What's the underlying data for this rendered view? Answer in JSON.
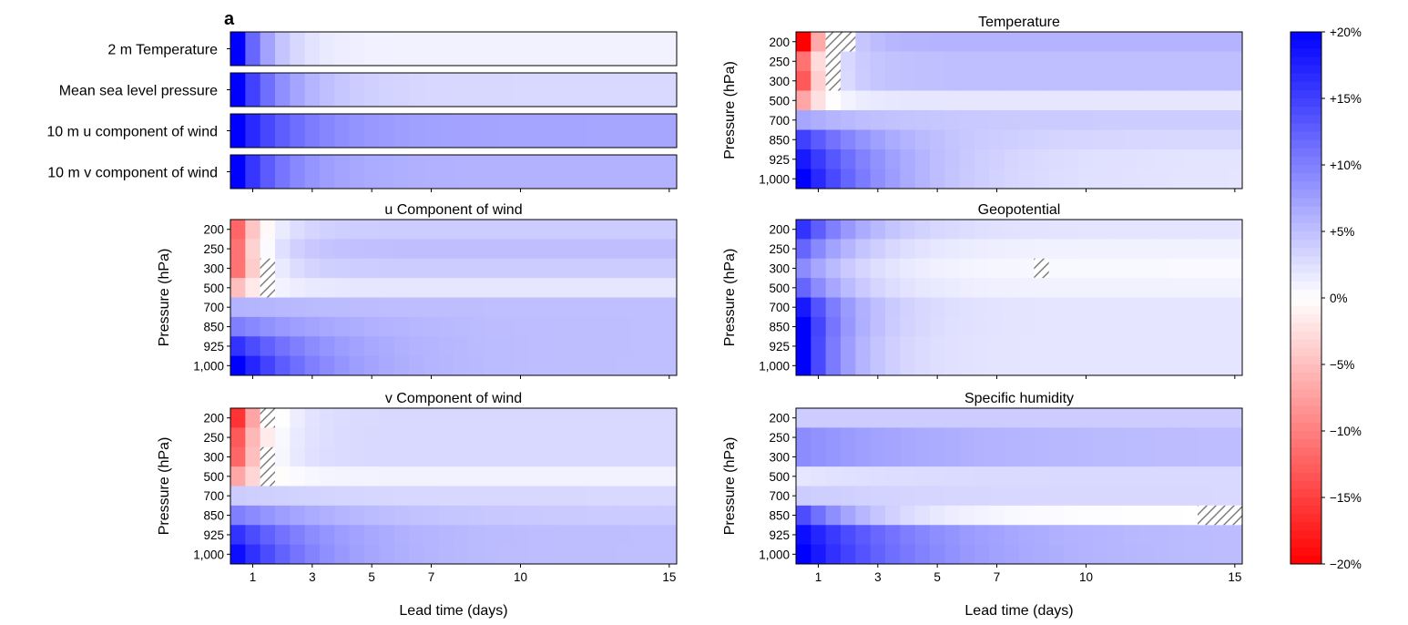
{
  "figure": {
    "panel_letter": "a",
    "colors": {
      "negative": "#ff0000",
      "zero": "#ffffff",
      "positive": "#0000ff",
      "hatch": "#777777"
    }
  },
  "chart_data": [
    {
      "type": "heatmap",
      "id": "surface",
      "title": "",
      "rows": [
        "2 m Temperature",
        "Mean sea level pressure",
        "10 m u component of wind",
        "10 m v component of wind"
      ],
      "x_ticks": [
        "1",
        "3",
        "5",
        "7",
        "10",
        "15"
      ],
      "x_lim_days": [
        0.25,
        15.25
      ],
      "start": [
        20,
        20,
        20,
        20
      ],
      "end": [
        1,
        3,
        7,
        6
      ],
      "decay": [
        0.9,
        1.4,
        1.8,
        1.4
      ],
      "hatch": []
    },
    {
      "type": "heatmap",
      "id": "temperature",
      "title": "Temperature",
      "ylabel": "Pressure (hPa)",
      "y_ticks": [
        "200",
        "250",
        "300",
        "500",
        "700",
        "850",
        "925",
        "1,000"
      ],
      "x_lim_days": [
        0.25,
        15.25
      ],
      "x_ticks": [
        "1",
        "3",
        "5",
        "7",
        "10",
        "15"
      ],
      "start": [
        -20,
        -11,
        -13,
        -7,
        7,
        15,
        18,
        20
      ],
      "end": [
        6,
        5,
        5,
        2,
        4,
        3,
        2,
        2
      ],
      "decay": [
        0.7,
        0.7,
        0.7,
        0.7,
        2.2,
        2.5,
        2.8,
        2.6
      ],
      "hatch": [
        {
          "level": 0,
          "from_day": 1.25,
          "to_day": 2.25
        },
        {
          "level": 1,
          "from_day": 1.25,
          "to_day": 1.75
        },
        {
          "level": 2,
          "from_day": 1.25,
          "to_day": 1.75
        }
      ]
    },
    {
      "type": "heatmap",
      "id": "u_wind",
      "title": "u Component of wind",
      "ylabel": "Pressure (hPa)",
      "y_ticks": [
        "200",
        "250",
        "300",
        "500",
        "700",
        "850",
        "925",
        "1,000"
      ],
      "x_lim_days": [
        0.25,
        15.25
      ],
      "x_ticks": [
        "1",
        "3",
        "5",
        "7",
        "10",
        "15"
      ],
      "start": [
        -12,
        -11,
        -11,
        -5,
        6,
        10,
        16,
        20
      ],
      "end": [
        4,
        5,
        4,
        2,
        5,
        5,
        5,
        5
      ],
      "decay": [
        0.8,
        0.8,
        0.8,
        0.8,
        3.0,
        3.0,
        2.5,
        2.3
      ],
      "hatch": [
        {
          "level": 2,
          "from_day": 1.25,
          "to_day": 1.75
        },
        {
          "level": 3,
          "from_day": 1.25,
          "to_day": 1.75
        }
      ]
    },
    {
      "type": "heatmap",
      "id": "geopotential",
      "title": "Geopotential",
      "ylabel": "Pressure (hPa)",
      "y_ticks": [
        "200",
        "250",
        "300",
        "500",
        "700",
        "850",
        "925",
        "1,000"
      ],
      "x_lim_days": [
        0.25,
        15.25
      ],
      "x_ticks": [
        "1",
        "3",
        "5",
        "7",
        "10",
        "15"
      ],
      "start": [
        16,
        12,
        9,
        12,
        18,
        20,
        20,
        20
      ],
      "end": [
        2,
        1,
        0.5,
        1,
        2,
        2,
        2,
        2
      ],
      "decay": [
        1.8,
        1.8,
        1.8,
        1.6,
        1.5,
        1.4,
        1.3,
        1.3
      ],
      "hatch": [
        {
          "level": 2,
          "from_day": 8.25,
          "to_day": 8.75
        }
      ]
    },
    {
      "type": "heatmap",
      "id": "v_wind",
      "title": "v Component of wind",
      "ylabel": "Pressure (hPa)",
      "y_ticks": [
        "200",
        "250",
        "300",
        "500",
        "700",
        "850",
        "925",
        "1,000"
      ],
      "x_lim_days": [
        0.25,
        15.25
      ],
      "x_ticks": [
        "1",
        "3",
        "5",
        "7",
        "10",
        "15"
      ],
      "start": [
        -16,
        -13,
        -12,
        -7,
        4,
        10,
        16,
        19
      ],
      "end": [
        3,
        3,
        3,
        1,
        3,
        4,
        5,
        5
      ],
      "decay": [
        0.8,
        0.8,
        0.8,
        0.8,
        3.0,
        3.0,
        2.5,
        2.3
      ],
      "hatch": [
        {
          "level": 0,
          "from_day": 1.25,
          "to_day": 1.75
        },
        {
          "level": 2,
          "from_day": 1.25,
          "to_day": 1.75
        },
        {
          "level": 3,
          "from_day": 1.25,
          "to_day": 1.75
        }
      ]
    },
    {
      "type": "heatmap",
      "id": "specific_humidity",
      "title": "Specific humidity",
      "ylabel": "Pressure (hPa)",
      "y_ticks": [
        "200",
        "250",
        "300",
        "500",
        "700",
        "850",
        "925",
        "1,000"
      ],
      "x_lim_days": [
        0.25,
        15.25
      ],
      "x_ticks": [
        "1",
        "3",
        "5",
        "7",
        "10",
        "15"
      ],
      "start": [
        4,
        9,
        9,
        2,
        4,
        14,
        19,
        20
      ],
      "end": [
        4,
        5,
        5,
        3,
        3,
        0,
        5,
        5
      ],
      "decay": [
        3.0,
        4.5,
        4.5,
        3.0,
        3.5,
        2.2,
        3.5,
        3.5
      ],
      "hatch": [
        {
          "level": 5,
          "from_day": 13.75,
          "to_day": 15.25
        }
      ]
    },
    {
      "type": "colorbar",
      "id": "colorbar",
      "range_percent": [
        -20,
        20
      ],
      "tick_labels": [
        "+20%",
        "+15%",
        "+10%",
        "+5%",
        "0%",
        "−5%",
        "−10%",
        "−15%",
        "−20%"
      ],
      "tick_values": [
        20,
        15,
        10,
        5,
        0,
        -5,
        -10,
        -15,
        -20
      ]
    }
  ],
  "xlabel": "Lead time (days)"
}
